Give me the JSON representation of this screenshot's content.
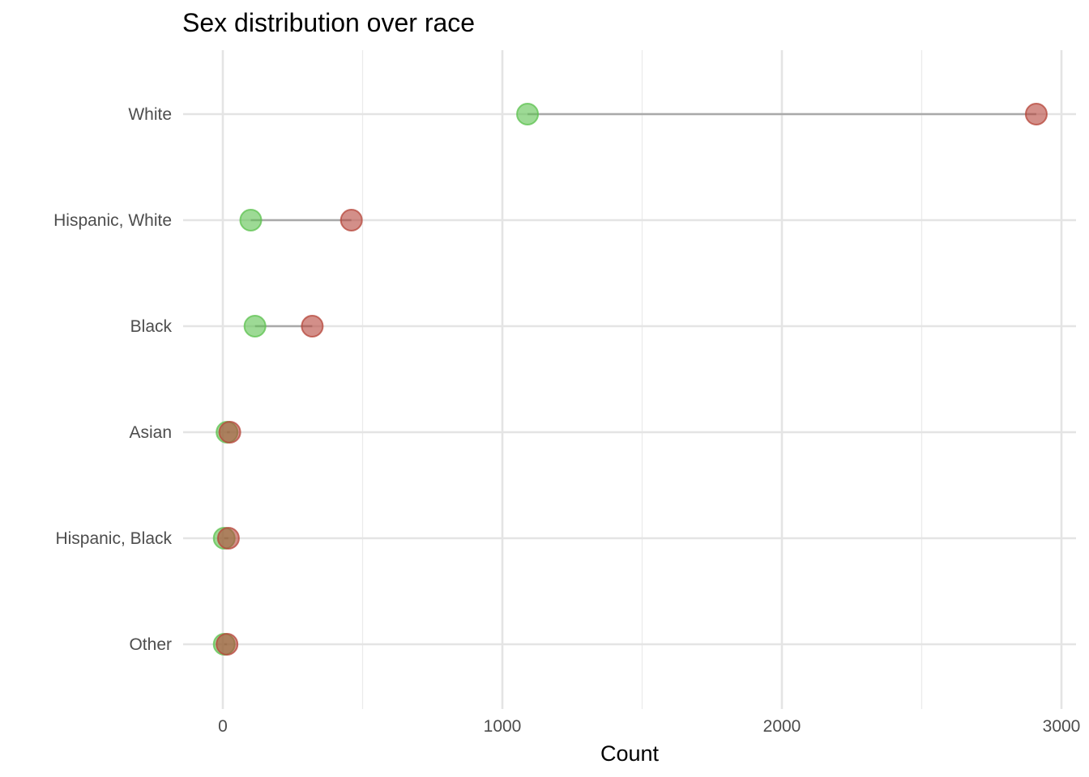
{
  "chart_data": {
    "type": "dumbbell",
    "title": "Sex distribution over race",
    "xlabel": "Count",
    "ylabel": "",
    "xlim": [
      -140,
      3070
    ],
    "x_ticks": [
      0,
      1000,
      2000,
      3000
    ],
    "x_tick_labels": [
      "0",
      "1000",
      "2000",
      "3000"
    ],
    "x_minor_ticks": [
      500,
      1500,
      2500
    ],
    "grid": true,
    "legend": "none",
    "categories": [
      "White",
      "Hispanic, White",
      "Black",
      "Asian",
      "Hispanic, Black",
      "Other"
    ],
    "series": [
      {
        "color": "#5cc14f",
        "values": [
          1090,
          100,
          115,
          15,
          5,
          5
        ]
      },
      {
        "color": "#b5453a",
        "values": [
          2910,
          460,
          320,
          25,
          20,
          15
        ]
      }
    ],
    "segment_color": "#a9a9a9"
  }
}
